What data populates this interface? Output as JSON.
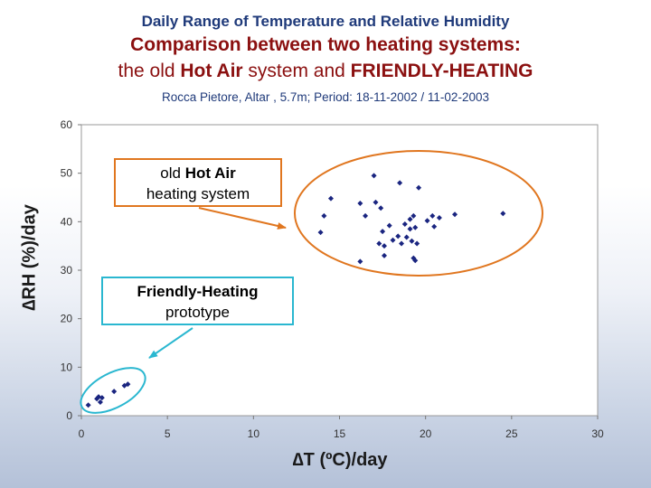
{
  "header": {
    "title_line1": "Daily Range of Temperature and Relative Humidity",
    "title_line2": "Comparison between two heating systems:",
    "title_line3_prefix": "the old ",
    "title_line3_bold1": "Hot Air",
    "title_line3_mid": " system and ",
    "title_line3_bold2": "FRIENDLY-HEATING",
    "subtitle": "Rocca Pietore, Altar , 5.7m; Period: 18-11-2002 / 11-02-2003"
  },
  "annotations": {
    "hot_air_line1_prefix": "old ",
    "hot_air_line1_bold": "Hot Air",
    "hot_air_line2": "heating system",
    "friendly_line1": "Friendly-Heating",
    "friendly_line2": "prototype"
  },
  "colors": {
    "marker": "#1a2580",
    "hot_air_ellipse": "#e0761f",
    "friendly_ellipse": "#2ab7d0"
  },
  "chart_data": {
    "type": "scatter",
    "xlabel": "∆T (ºC)/day",
    "ylabel": "∆RH (%)/day",
    "xlim": [
      0,
      30
    ],
    "ylim": [
      0,
      60
    ],
    "xticks": [
      0,
      5,
      10,
      15,
      20,
      25,
      30
    ],
    "yticks": [
      0,
      10,
      20,
      30,
      40,
      50,
      60
    ],
    "grid": false,
    "marker": "diamond",
    "points": [
      {
        "x": 0.4,
        "y": 2.2
      },
      {
        "x": 0.9,
        "y": 3.5
      },
      {
        "x": 1.0,
        "y": 3.9
      },
      {
        "x": 1.2,
        "y": 3.7
      },
      {
        "x": 1.1,
        "y": 2.8
      },
      {
        "x": 1.9,
        "y": 5.0
      },
      {
        "x": 2.5,
        "y": 6.2
      },
      {
        "x": 2.7,
        "y": 6.5
      },
      {
        "x": 13.9,
        "y": 37.8
      },
      {
        "x": 14.1,
        "y": 41.2
      },
      {
        "x": 14.5,
        "y": 44.8
      },
      {
        "x": 16.2,
        "y": 43.8
      },
      {
        "x": 16.2,
        "y": 31.8
      },
      {
        "x": 16.5,
        "y": 41.2
      },
      {
        "x": 17.0,
        "y": 49.5
      },
      {
        "x": 17.1,
        "y": 44.0
      },
      {
        "x": 17.3,
        "y": 35.5
      },
      {
        "x": 17.4,
        "y": 42.8
      },
      {
        "x": 17.5,
        "y": 38.0
      },
      {
        "x": 17.6,
        "y": 35.0
      },
      {
        "x": 17.6,
        "y": 33.0
      },
      {
        "x": 17.9,
        "y": 39.2
      },
      {
        "x": 18.1,
        "y": 36.2
      },
      {
        "x": 18.4,
        "y": 37.0
      },
      {
        "x": 18.5,
        "y": 48.0
      },
      {
        "x": 18.6,
        "y": 35.5
      },
      {
        "x": 18.8,
        "y": 39.5
      },
      {
        "x": 18.9,
        "y": 36.8
      },
      {
        "x": 19.1,
        "y": 38.5
      },
      {
        "x": 19.1,
        "y": 40.5
      },
      {
        "x": 19.2,
        "y": 36.0
      },
      {
        "x": 19.3,
        "y": 41.2
      },
      {
        "x": 19.3,
        "y": 32.5
      },
      {
        "x": 19.4,
        "y": 32.0
      },
      {
        "x": 19.4,
        "y": 38.8
      },
      {
        "x": 19.6,
        "y": 47.0
      },
      {
        "x": 19.5,
        "y": 35.5
      },
      {
        "x": 20.1,
        "y": 40.2
      },
      {
        "x": 20.4,
        "y": 41.2
      },
      {
        "x": 20.5,
        "y": 39.0
      },
      {
        "x": 20.8,
        "y": 40.8
      },
      {
        "x": 21.7,
        "y": 41.5
      },
      {
        "x": 24.5,
        "y": 41.7
      }
    ]
  }
}
